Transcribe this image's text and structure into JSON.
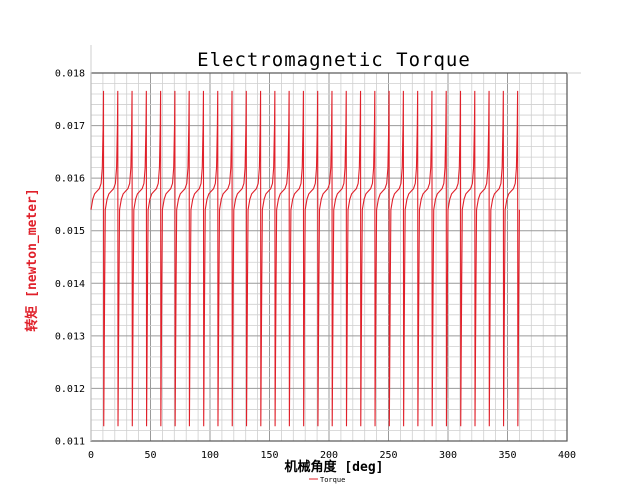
{
  "chart_data": {
    "type": "line",
    "title": "Electromagnetic Torque",
    "xlabel": "机械角度 [deg]",
    "ylabel": "转矩 [newton_meter]",
    "xlim": [
      0,
      400
    ],
    "ylim": [
      0.011,
      0.018
    ],
    "xticks": [
      "0",
      "50",
      "100",
      "150",
      "200",
      "250",
      "300",
      "350",
      "400"
    ],
    "yticks": [
      "0.011",
      "0.012",
      "0.013",
      "0.014",
      "0.015",
      "0.016",
      "0.017",
      "0.018"
    ],
    "grid": true,
    "legend_position": "bottom-center",
    "series": [
      {
        "name": "Torque",
        "color": "#e0202a",
        "period_deg": 12.0,
        "cycles": 30,
        "x_start": 0,
        "x_end": 360,
        "y_max": 0.01766,
        "y_min": 0.01128,
        "y_plateau": 0.0157,
        "x": [
          0,
          1.5,
          3,
          5,
          7,
          8.5,
          9.5,
          10.2,
          10.5,
          10.7,
          11.5,
          12.0
        ],
        "y": [
          0.0154,
          0.0156,
          0.0157,
          0.01575,
          0.0158,
          0.0159,
          0.0162,
          0.017,
          0.01766,
          0.01128,
          0.014,
          0.0154
        ]
      }
    ]
  },
  "colors": {
    "axis_title": "#e0202a",
    "grid_major": "#9a9a9a",
    "grid_minor": "#cfcfcf",
    "axis": "#555555"
  }
}
